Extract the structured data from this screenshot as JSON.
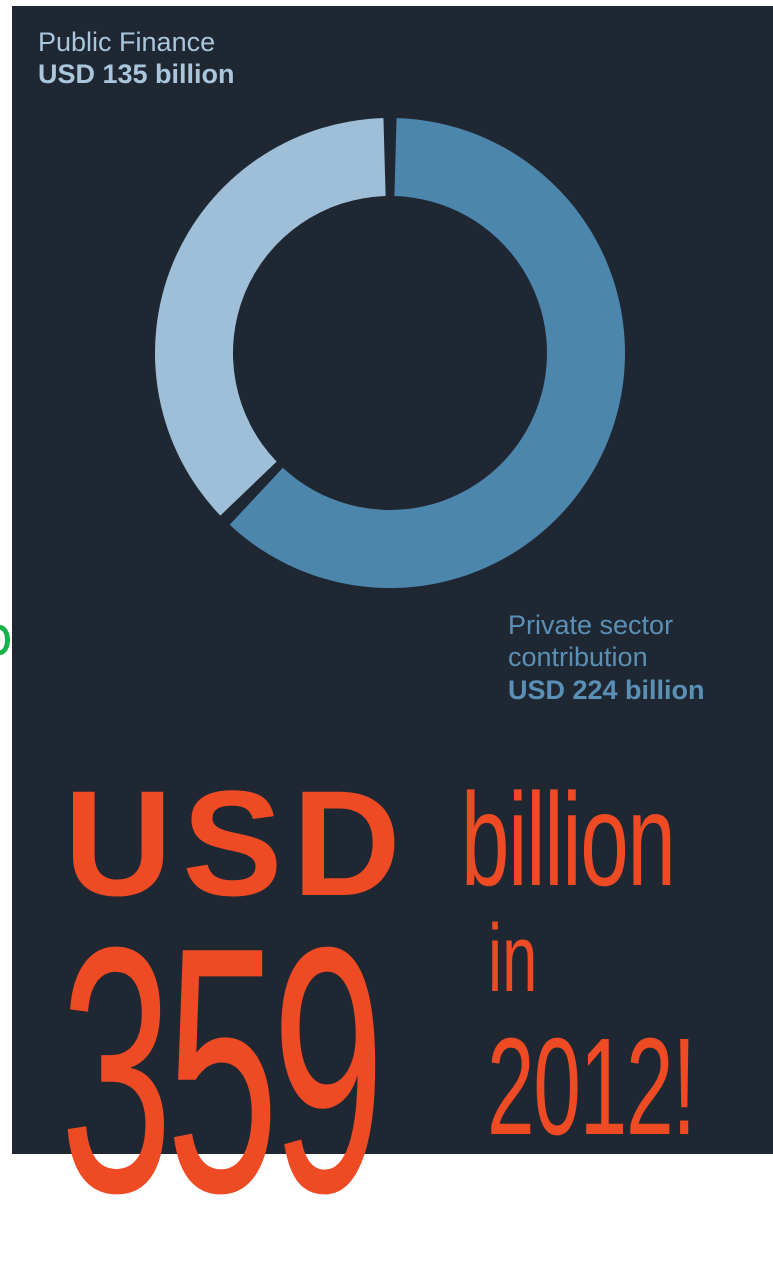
{
  "chart_data": {
    "type": "pie",
    "variant": "donut",
    "slices": [
      {
        "name": "Private sector contribution",
        "value": 224,
        "value_label": "USD 224 billion",
        "color": "#4d86ad"
      },
      {
        "name": "Public Finance",
        "value": 135,
        "value_label": "USD 135 billion",
        "color": "#9fbfd8"
      }
    ],
    "total": 359
  },
  "colors": {
    "background": "#1f2733",
    "headline": "#ee4a23",
    "public_label": "#aac6dc",
    "private_label": "#5b90b6"
  },
  "headline": {
    "currency": "USD",
    "unit": "billion",
    "amount": "359",
    "connector": "in",
    "year": "2012!"
  }
}
